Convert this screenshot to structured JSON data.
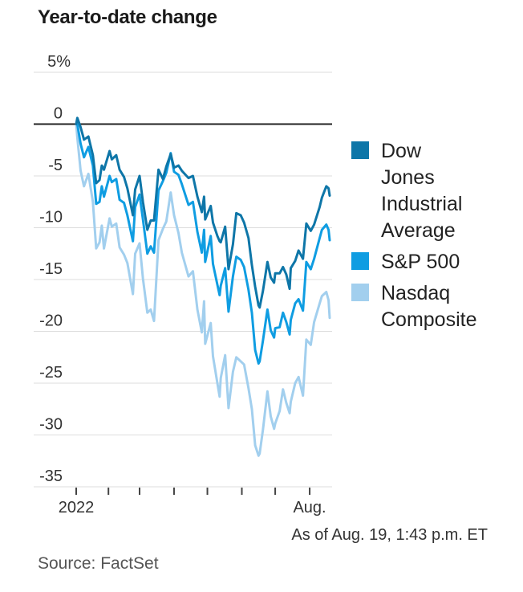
{
  "title": "Year-to-date change",
  "footnote": "As of Aug. 19, 1:43 p.m. ET",
  "source": "Source: FactSet",
  "colors": {
    "grid": "#dddddd",
    "zero_line": "#222222",
    "axis_tick": "#444444",
    "axis_text": "#333333",
    "dow": "#0e76a8",
    "sp500": "#0f9de2",
    "nasdaq": "#a2cfee"
  },
  "legend": {
    "items": [
      {
        "label": "Dow Jones Industrial Average",
        "color": "#0e76a8"
      },
      {
        "label": "S&P 500",
        "color": "#0f9de2"
      },
      {
        "label": "Nasdaq Composite",
        "color": "#a2cfee"
      }
    ]
  },
  "chart_data": {
    "type": "line",
    "title": "Year-to-date change",
    "unit": "percent change, year to date",
    "ylim": [
      -35,
      5
    ],
    "grid": true,
    "legend_position": "right",
    "y_ticks": [
      {
        "value": 5,
        "label": "5%"
      },
      {
        "value": 0,
        "label": "0"
      },
      {
        "value": -5,
        "label": "-5"
      },
      {
        "value": -10,
        "label": "-10"
      },
      {
        "value": -15,
        "label": "-15"
      },
      {
        "value": -20,
        "label": "-20"
      },
      {
        "value": -25,
        "label": "-25"
      },
      {
        "value": -30,
        "label": "-30"
      },
      {
        "value": -35,
        "label": "-35"
      }
    ],
    "x_axis": {
      "start": "2022-01-03",
      "end": "2022-08-19",
      "unit": "day_of_year_2022",
      "ticks": [
        {
          "day": 3,
          "label": "2022"
        },
        {
          "day": 32,
          "label": ""
        },
        {
          "day": 60,
          "label": ""
        },
        {
          "day": 91,
          "label": ""
        },
        {
          "day": 121,
          "label": ""
        },
        {
          "day": 152,
          "label": ""
        },
        {
          "day": 182,
          "label": ""
        },
        {
          "day": 213,
          "label": "Aug."
        }
      ]
    },
    "series": [
      {
        "name": "Dow Jones Industrial Average",
        "color": "#0e76a8",
        "points": [
          [
            3,
            0
          ],
          [
            4,
            0.6
          ],
          [
            7,
            -0.3
          ],
          [
            10,
            -1.5
          ],
          [
            14,
            -1.2
          ],
          [
            18,
            -3
          ],
          [
            21,
            -5.7
          ],
          [
            24,
            -5.4
          ],
          [
            26,
            -4
          ],
          [
            28,
            -4.4
          ],
          [
            33,
            -2.6
          ],
          [
            35,
            -3.4
          ],
          [
            39,
            -3
          ],
          [
            42,
            -4.4
          ],
          [
            46,
            -5.1
          ],
          [
            49,
            -6.2
          ],
          [
            54,
            -8.8
          ],
          [
            56,
            -6.3
          ],
          [
            60,
            -5
          ],
          [
            63,
            -7.5
          ],
          [
            67,
            -10.2
          ],
          [
            70,
            -9.3
          ],
          [
            73,
            -9.3
          ],
          [
            77,
            -4.4
          ],
          [
            81,
            -5.3
          ],
          [
            84,
            -4.1
          ],
          [
            88,
            -2.9
          ],
          [
            91,
            -4.2
          ],
          [
            95,
            -4
          ],
          [
            98,
            -4.5
          ],
          [
            104,
            -5.2
          ],
          [
            108,
            -5
          ],
          [
            112,
            -7
          ],
          [
            116,
            -8.5
          ],
          [
            118,
            -7
          ],
          [
            119,
            -9.2
          ],
          [
            124,
            -7.9
          ],
          [
            126,
            -9.5
          ],
          [
            130,
            -10.8
          ],
          [
            132,
            -11.3
          ],
          [
            133,
            -11.4
          ],
          [
            137,
            -9.9
          ],
          [
            140,
            -14
          ],
          [
            144,
            -11.6
          ],
          [
            147,
            -8.6
          ],
          [
            151,
            -8.8
          ],
          [
            154,
            -9.5
          ],
          [
            158,
            -11
          ],
          [
            161,
            -13.6
          ],
          [
            164,
            -15.7
          ],
          [
            167,
            -17.5
          ],
          [
            168,
            -17.7
          ],
          [
            171,
            -16.1
          ],
          [
            175,
            -13.3
          ],
          [
            178,
            -14.8
          ],
          [
            181,
            -15.3
          ],
          [
            182,
            -14.4
          ],
          [
            186,
            -14.4
          ],
          [
            189,
            -13.8
          ],
          [
            192,
            -14.5
          ],
          [
            195,
            -15.9
          ],
          [
            196,
            -13.9
          ],
          [
            200,
            -13.2
          ],
          [
            203,
            -12.2
          ],
          [
            207,
            -13
          ],
          [
            210,
            -9.6
          ],
          [
            214,
            -10.3
          ],
          [
            217,
            -9.7
          ],
          [
            222,
            -8
          ],
          [
            224,
            -7.1
          ],
          [
            228,
            -6
          ],
          [
            230,
            -6.2
          ],
          [
            231,
            -6.9
          ]
        ]
      },
      {
        "name": "S&P 500",
        "color": "#0f9de2",
        "points": [
          [
            3,
            0
          ],
          [
            4,
            0
          ],
          [
            7,
            -1.9
          ],
          [
            10,
            -3.2
          ],
          [
            14,
            -2.2
          ],
          [
            18,
            -4
          ],
          [
            21,
            -7.7
          ],
          [
            24,
            -7.5
          ],
          [
            26,
            -6
          ],
          [
            28,
            -7
          ],
          [
            33,
            -5
          ],
          [
            35,
            -5.6
          ],
          [
            39,
            -5.3
          ],
          [
            42,
            -7.3
          ],
          [
            46,
            -7.6
          ],
          [
            49,
            -8.8
          ],
          [
            54,
            -11.3
          ],
          [
            56,
            -8
          ],
          [
            60,
            -6.8
          ],
          [
            63,
            -9.2
          ],
          [
            67,
            -12.5
          ],
          [
            70,
            -11.8
          ],
          [
            73,
            -12.4
          ],
          [
            77,
            -6.4
          ],
          [
            81,
            -5.5
          ],
          [
            84,
            -4.7
          ],
          [
            88,
            -2.8
          ],
          [
            91,
            -4.6
          ],
          [
            95,
            -4.9
          ],
          [
            98,
            -5.8
          ],
          [
            104,
            -7.8
          ],
          [
            108,
            -7.5
          ],
          [
            112,
            -10.4
          ],
          [
            116,
            -12.4
          ],
          [
            118,
            -10.2
          ],
          [
            119,
            -13.3
          ],
          [
            124,
            -10.8
          ],
          [
            126,
            -13.5
          ],
          [
            130,
            -15.5
          ],
          [
            132,
            -16.5
          ],
          [
            133,
            -15.6
          ],
          [
            137,
            -13.9
          ],
          [
            140,
            -18.1
          ],
          [
            144,
            -14.7
          ],
          [
            147,
            -12.8
          ],
          [
            151,
            -13.1
          ],
          [
            154,
            -13.8
          ],
          [
            158,
            -16
          ],
          [
            161,
            -18.2
          ],
          [
            164,
            -21.8
          ],
          [
            167,
            -23.1
          ],
          [
            168,
            -22.9
          ],
          [
            171,
            -20.9
          ],
          [
            175,
            -17.9
          ],
          [
            178,
            -19.9
          ],
          [
            181,
            -20.6
          ],
          [
            182,
            -19.7
          ],
          [
            186,
            -19.6
          ],
          [
            189,
            -18.2
          ],
          [
            192,
            -19.1
          ],
          [
            195,
            -20.3
          ],
          [
            196,
            -18.9
          ],
          [
            200,
            -17.3
          ],
          [
            203,
            -16.9
          ],
          [
            207,
            -18
          ],
          [
            210,
            -13.3
          ],
          [
            214,
            -14
          ],
          [
            217,
            -13
          ],
          [
            222,
            -11
          ],
          [
            224,
            -10.2
          ],
          [
            228,
            -9.7
          ],
          [
            230,
            -10.2
          ],
          [
            231,
            -11.2
          ]
        ]
      },
      {
        "name": "Nasdaq Composite",
        "color": "#a2cfee",
        "points": [
          [
            3,
            0
          ],
          [
            4,
            -1.3
          ],
          [
            7,
            -4.5
          ],
          [
            10,
            -6
          ],
          [
            14,
            -4.8
          ],
          [
            18,
            -7.5
          ],
          [
            21,
            -12
          ],
          [
            24,
            -11.4
          ],
          [
            26,
            -9.8
          ],
          [
            28,
            -12
          ],
          [
            33,
            -9.1
          ],
          [
            35,
            -9.9
          ],
          [
            39,
            -9.6
          ],
          [
            42,
            -11.9
          ],
          [
            46,
            -12.6
          ],
          [
            49,
            -13.4
          ],
          [
            54,
            -16.4
          ],
          [
            56,
            -12.5
          ],
          [
            60,
            -11.5
          ],
          [
            63,
            -14.9
          ],
          [
            67,
            -18.2
          ],
          [
            70,
            -17.9
          ],
          [
            73,
            -19
          ],
          [
            77,
            -11.2
          ],
          [
            81,
            -10.1
          ],
          [
            84,
            -9.4
          ],
          [
            88,
            -6.6
          ],
          [
            91,
            -8.8
          ],
          [
            95,
            -10.5
          ],
          [
            98,
            -12.4
          ],
          [
            104,
            -14.7
          ],
          [
            108,
            -14.2
          ],
          [
            112,
            -17.9
          ],
          [
            116,
            -20.1
          ],
          [
            118,
            -17.1
          ],
          [
            119,
            -21.2
          ],
          [
            124,
            -19.2
          ],
          [
            126,
            -22.4
          ],
          [
            130,
            -25
          ],
          [
            132,
            -26.3
          ],
          [
            133,
            -24.5
          ],
          [
            137,
            -22.3
          ],
          [
            140,
            -27.4
          ],
          [
            144,
            -23.9
          ],
          [
            147,
            -22.5
          ],
          [
            151,
            -22.9
          ],
          [
            154,
            -23.2
          ],
          [
            158,
            -25.5
          ],
          [
            161,
            -27.5
          ],
          [
            164,
            -31
          ],
          [
            167,
            -32
          ],
          [
            168,
            -31.8
          ],
          [
            171,
            -29.5
          ],
          [
            175,
            -25.8
          ],
          [
            178,
            -28.2
          ],
          [
            181,
            -29.4
          ],
          [
            182,
            -28.9
          ],
          [
            186,
            -27.7
          ],
          [
            189,
            -25.6
          ],
          [
            192,
            -26.9
          ],
          [
            195,
            -27.9
          ],
          [
            196,
            -26.8
          ],
          [
            200,
            -25
          ],
          [
            203,
            -24.4
          ],
          [
            207,
            -26.2
          ],
          [
            210,
            -20.8
          ],
          [
            214,
            -21.3
          ],
          [
            217,
            -19.1
          ],
          [
            222,
            -17.3
          ],
          [
            224,
            -16.6
          ],
          [
            228,
            -16.2
          ],
          [
            230,
            -17
          ],
          [
            231,
            -18.7
          ]
        ]
      }
    ]
  }
}
